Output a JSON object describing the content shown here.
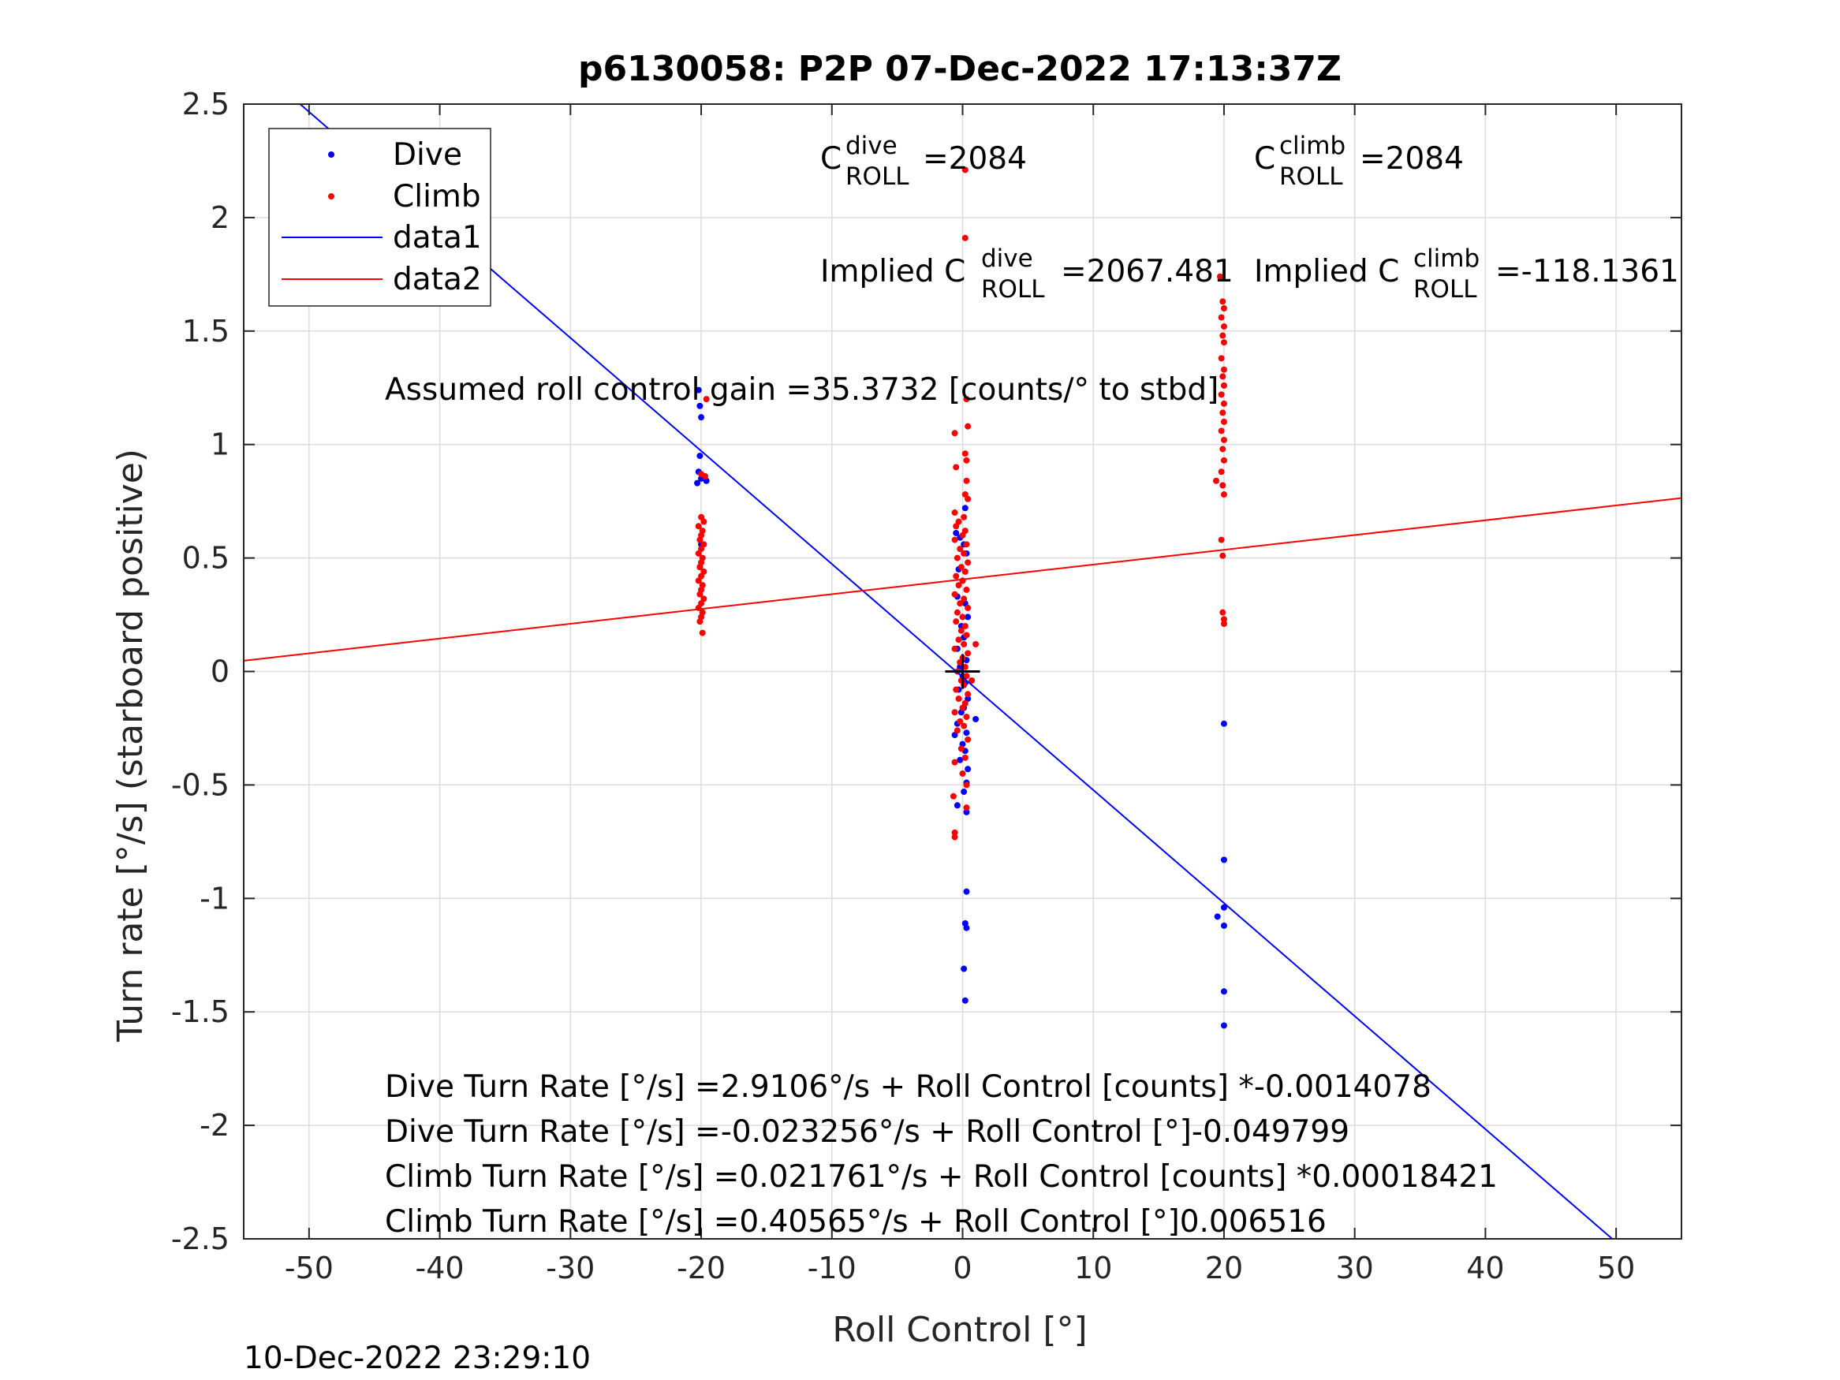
{
  "chart_data": {
    "type": "scatter",
    "title": "p6130058: P2P 07-Dec-2022 17:13:37Z",
    "xlabel": "Roll Control [°]",
    "ylabel": "Turn rate [°/s] (starboard positive)",
    "xlim": [
      -55,
      55
    ],
    "ylim": [
      -2.5,
      2.5
    ],
    "x_ticks": [
      -50,
      -40,
      -30,
      -20,
      -10,
      0,
      10,
      20,
      30,
      40,
      50
    ],
    "x_tick_labels": [
      "-50",
      "-40",
      "-30",
      "-20",
      "-10",
      "0",
      "10",
      "20",
      "30",
      "40",
      "50"
    ],
    "y_ticks": [
      2.5,
      2,
      1.5,
      1,
      0.5,
      0,
      -0.5,
      -1,
      -1.5,
      -2,
      -2.5
    ],
    "y_tick_labels": [
      "2.5",
      "2",
      "1.5",
      "1",
      "0.5",
      "0",
      "-0.5",
      "-1",
      "-1.5",
      "-2",
      "-2.5"
    ],
    "grid": true,
    "legend_position": "top-left",
    "legend": [
      "Dive",
      "Climb",
      "data1",
      "data2"
    ],
    "colors": {
      "dive": "#0000ff",
      "climb": "#ff0000",
      "axis": "#262626"
    },
    "series": [
      {
        "name": "Dive",
        "kind": "scatter",
        "color": "#0000ff",
        "points": [
          [
            -20.2,
            1.24
          ],
          [
            -20.1,
            1.17
          ],
          [
            -20.0,
            1.12
          ],
          [
            -20.1,
            0.95
          ],
          [
            -20.2,
            0.88
          ],
          [
            -20.0,
            0.85
          ],
          [
            -19.6,
            0.84
          ],
          [
            -20.3,
            0.83
          ],
          [
            -20.0,
            0.56
          ],
          [
            -20.1,
            0.46
          ],
          [
            0.2,
            0.72
          ],
          [
            -0.5,
            0.61
          ],
          [
            -0.2,
            0.59
          ],
          [
            0.1,
            0.56
          ],
          [
            0.3,
            0.52
          ],
          [
            -0.3,
            0.45
          ],
          [
            0.0,
            0.4
          ],
          [
            -0.4,
            0.33
          ],
          [
            0.2,
            0.3
          ],
          [
            0.4,
            0.24
          ],
          [
            -0.1,
            0.2
          ],
          [
            0.1,
            0.15
          ],
          [
            -0.4,
            0.1
          ],
          [
            0.3,
            0.05
          ],
          [
            -0.2,
            0.02
          ],
          [
            0.0,
            -0.02
          ],
          [
            0.2,
            -0.05
          ],
          [
            -0.3,
            -0.08
          ],
          [
            0.4,
            -0.12
          ],
          [
            0.1,
            -0.16
          ],
          [
            -0.1,
            -0.18
          ],
          [
            1.0,
            -0.21
          ],
          [
            -0.4,
            -0.23
          ],
          [
            0.3,
            -0.27
          ],
          [
            -0.6,
            -0.28
          ],
          [
            0.0,
            -0.32
          ],
          [
            0.2,
            -0.35
          ],
          [
            -0.2,
            -0.39
          ],
          [
            0.4,
            -0.43
          ],
          [
            0.3,
            -0.49
          ],
          [
            0.1,
            -0.53
          ],
          [
            -0.4,
            -0.59
          ],
          [
            0.3,
            -0.62
          ],
          [
            0.3,
            -0.97
          ],
          [
            0.2,
            -1.11
          ],
          [
            0.3,
            -1.13
          ],
          [
            0.1,
            -1.31
          ],
          [
            0.2,
            -1.45
          ],
          [
            20.0,
            -0.23
          ],
          [
            20.0,
            -0.83
          ],
          [
            19.5,
            -1.08
          ],
          [
            20.0,
            -1.04
          ],
          [
            20.0,
            -1.12
          ],
          [
            20.0,
            -1.41
          ],
          [
            20.0,
            -1.56
          ]
        ]
      },
      {
        "name": "Climb",
        "kind": "scatter",
        "color": "#ff0000",
        "points": [
          [
            -19.6,
            1.2
          ],
          [
            -20.0,
            0.87
          ],
          [
            -19.7,
            0.86
          ],
          [
            -20.0,
            0.68
          ],
          [
            -19.8,
            0.66
          ],
          [
            -20.2,
            0.64
          ],
          [
            -19.9,
            0.62
          ],
          [
            -20.0,
            0.6
          ],
          [
            -20.1,
            0.58
          ],
          [
            -19.8,
            0.56
          ],
          [
            -20.0,
            0.54
          ],
          [
            -20.2,
            0.52
          ],
          [
            -19.9,
            0.5
          ],
          [
            -20.0,
            0.48
          ],
          [
            -20.1,
            0.46
          ],
          [
            -19.8,
            0.44
          ],
          [
            -20.0,
            0.42
          ],
          [
            -20.2,
            0.4
          ],
          [
            -19.9,
            0.38
          ],
          [
            -20.0,
            0.36
          ],
          [
            -20.1,
            0.34
          ],
          [
            -19.8,
            0.32
          ],
          [
            -20.0,
            0.3
          ],
          [
            -20.2,
            0.28
          ],
          [
            -19.9,
            0.26
          ],
          [
            -20.0,
            0.24
          ],
          [
            -20.1,
            0.22
          ],
          [
            -19.9,
            0.17
          ],
          [
            0.2,
            2.21
          ],
          [
            0.2,
            1.91
          ],
          [
            0.3,
            1.2
          ],
          [
            0.4,
            1.08
          ],
          [
            -0.6,
            1.05
          ],
          [
            0.2,
            0.96
          ],
          [
            0.3,
            0.93
          ],
          [
            -0.5,
            0.9
          ],
          [
            0.3,
            0.84
          ],
          [
            0.2,
            0.78
          ],
          [
            0.4,
            0.76
          ],
          [
            -0.6,
            0.7
          ],
          [
            0.1,
            0.68
          ],
          [
            -0.3,
            0.66
          ],
          [
            -0.5,
            0.64
          ],
          [
            0.2,
            0.62
          ],
          [
            0.0,
            0.6
          ],
          [
            -0.6,
            0.58
          ],
          [
            0.3,
            0.56
          ],
          [
            -0.2,
            0.54
          ],
          [
            0.1,
            0.52
          ],
          [
            -0.4,
            0.5
          ],
          [
            0.4,
            0.48
          ],
          [
            -0.1,
            0.46
          ],
          [
            0.2,
            0.44
          ],
          [
            -0.5,
            0.42
          ],
          [
            0.0,
            0.4
          ],
          [
            -0.3,
            0.38
          ],
          [
            0.3,
            0.36
          ],
          [
            -0.6,
            0.34
          ],
          [
            0.1,
            0.32
          ],
          [
            -0.2,
            0.3
          ],
          [
            0.4,
            0.28
          ],
          [
            -0.4,
            0.26
          ],
          [
            0.0,
            0.24
          ],
          [
            -0.5,
            0.22
          ],
          [
            0.2,
            0.2
          ],
          [
            -0.1,
            0.18
          ],
          [
            0.3,
            0.16
          ],
          [
            -0.3,
            0.14
          ],
          [
            0.1,
            0.12
          ],
          [
            -0.6,
            0.1
          ],
          [
            0.4,
            0.08
          ],
          [
            0.0,
            0.06
          ],
          [
            -0.2,
            0.04
          ],
          [
            0.2,
            0.02
          ],
          [
            -0.4,
            0.0
          ],
          [
            0.3,
            -0.02
          ],
          [
            -0.1,
            -0.04
          ],
          [
            0.1,
            -0.06
          ],
          [
            -0.5,
            -0.08
          ],
          [
            0.4,
            -0.1
          ],
          [
            -0.3,
            -0.12
          ],
          [
            0.2,
            -0.14
          ],
          [
            0.0,
            -0.16
          ],
          [
            -0.6,
            -0.18
          ],
          [
            0.3,
            -0.2
          ],
          [
            -0.2,
            -0.22
          ],
          [
            0.1,
            -0.24
          ],
          [
            -0.4,
            -0.26
          ],
          [
            0.4,
            -0.3
          ],
          [
            -0.1,
            -0.34
          ],
          [
            0.2,
            -0.38
          ],
          [
            -0.6,
            -0.4
          ],
          [
            0.0,
            -0.45
          ],
          [
            0.3,
            -0.5
          ],
          [
            -0.7,
            -0.55
          ],
          [
            0.3,
            -0.6
          ],
          [
            -0.6,
            -0.71
          ],
          [
            -0.6,
            -0.73
          ],
          [
            1.0,
            0.12
          ],
          [
            0.7,
            -0.04
          ],
          [
            19.7,
            1.74
          ],
          [
            19.9,
            1.63
          ],
          [
            20.0,
            1.6
          ],
          [
            19.8,
            1.56
          ],
          [
            20.0,
            1.52
          ],
          [
            19.9,
            1.48
          ],
          [
            20.0,
            1.45
          ],
          [
            19.8,
            1.38
          ],
          [
            20.0,
            1.33
          ],
          [
            19.9,
            1.3
          ],
          [
            20.0,
            1.26
          ],
          [
            19.8,
            1.22
          ],
          [
            20.0,
            1.18
          ],
          [
            19.9,
            1.14
          ],
          [
            20.0,
            1.1
          ],
          [
            19.8,
            1.06
          ],
          [
            20.0,
            1.02
          ],
          [
            19.9,
            0.98
          ],
          [
            20.0,
            0.93
          ],
          [
            19.8,
            0.88
          ],
          [
            19.4,
            0.84
          ],
          [
            19.9,
            0.82
          ],
          [
            20.0,
            0.78
          ],
          [
            19.8,
            0.58
          ],
          [
            19.9,
            0.51
          ],
          [
            19.9,
            0.26
          ],
          [
            20.0,
            0.23
          ],
          [
            20.0,
            0.21
          ]
        ]
      },
      {
        "name": "data1",
        "kind": "line",
        "color": "#0000ff",
        "points": [
          [
            -55,
            2.7148
          ],
          [
            55,
            -2.7638
          ]
        ]
      },
      {
        "name": "data2",
        "kind": "line",
        "color": "#ff0000",
        "points": [
          [
            -55,
            0.04727
          ],
          [
            55,
            0.76403
          ]
        ]
      }
    ],
    "origin_marker": [
      0,
      0
    ],
    "annotations": {
      "c_dive": {
        "main": "C",
        "sup": "dive",
        "sub": "ROLL",
        "value": "=2084"
      },
      "c_climb": {
        "main": "C",
        "sup": "climb",
        "sub": "ROLL",
        "value": "=2084"
      },
      "implied_dive": {
        "main": "Implied C",
        "sup": "dive",
        "sub": "ROLL",
        "value": "=2067.481"
      },
      "implied_climb": {
        "main": "Implied C",
        "sup": "climb",
        "sub": "ROLL",
        "value": "=-118.1361"
      },
      "gain": "Assumed roll control gain =35.3732 [counts/° to stbd]",
      "equations": [
        "Dive Turn Rate [°/s] =2.9106°/s + Roll Control [counts] *-0.0014078",
        "Dive Turn Rate [°/s] =-0.023256°/s + Roll Control [°]-0.049799",
        "Climb Turn Rate [°/s] =0.021761°/s + Roll Control [counts] *0.00018421",
        "Climb Turn Rate [°/s] =0.40565°/s + Roll Control [°]0.006516"
      ]
    },
    "timestamp": "10-Dec-2022 23:29:10"
  }
}
